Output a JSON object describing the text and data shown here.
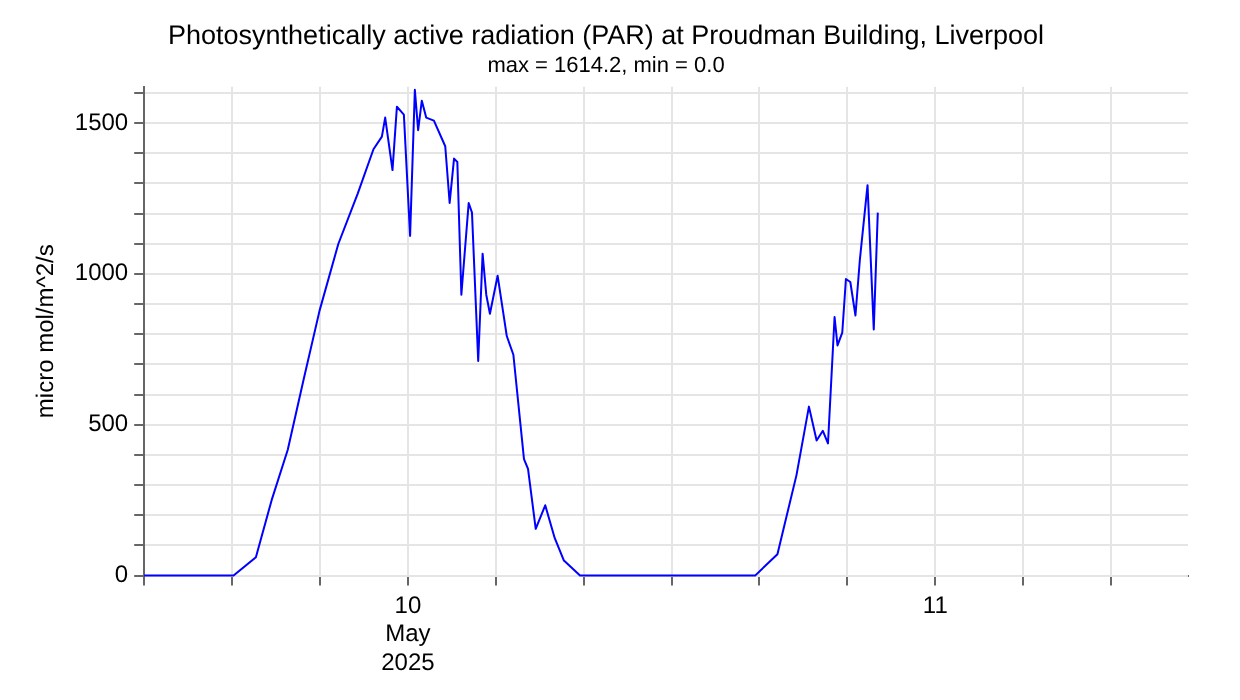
{
  "chart_data": {
    "type": "line",
    "title": "Photosynthetically active radiation (PAR) at Proudman Building, Liverpool",
    "subtitle": "max = 1614.2, min = 0.0",
    "ylabel": "micro mol/m^2/s",
    "xlim": [
      "2025-05-10T00:00",
      "2025-05-11T23:30"
    ],
    "xticks": [
      {
        "value": "2025-05-10T00:00",
        "label": null
      },
      {
        "value": "2025-05-10T04:00",
        "label": null
      },
      {
        "value": "2025-05-10T08:00",
        "label": null
      },
      {
        "value": "2025-05-10T12:00",
        "label": "10\nMay\n2025"
      },
      {
        "value": "2025-05-10T16:00",
        "label": null
      },
      {
        "value": "2025-05-10T20:00",
        "label": null
      },
      {
        "value": "2025-05-11T00:00",
        "label": null
      },
      {
        "value": "2025-05-11T04:00",
        "label": null
      },
      {
        "value": "2025-05-11T08:00",
        "label": null
      },
      {
        "value": "2025-05-11T12:00",
        "label": "11"
      },
      {
        "value": "2025-05-11T16:00",
        "label": null
      },
      {
        "value": "2025-05-11T20:00",
        "label": null
      }
    ],
    "ylim": [
      0,
      1620
    ],
    "yticks": [
      0,
      {
        "value": 100,
        "label": null
      },
      {
        "value": 200,
        "label": null
      },
      {
        "value": 300,
        "label": null
      },
      {
        "value": 400,
        "label": null
      },
      500,
      {
        "value": 600,
        "label": null
      },
      {
        "value": 700,
        "label": null
      },
      {
        "value": 800,
        "label": null
      },
      {
        "value": 900,
        "label": null
      },
      1000,
      {
        "value": 1100,
        "label": null
      },
      {
        "value": 1200,
        "label": null
      },
      {
        "value": 1300,
        "label": null
      },
      {
        "value": 1400,
        "label": null
      },
      1500,
      {
        "value": 1600,
        "label": null
      }
    ],
    "grid": true,
    "legend": false,
    "marker": "none",
    "line_style": "solid",
    "series": [
      {
        "color": "#0000ff",
        "x": [
          "2025-05-10T00:00",
          "2025-05-10T04:04",
          "2025-05-10T05:05",
          "2025-05-10T05:48",
          "2025-05-10T06:32",
          "2025-05-10T07:15",
          "2025-05-10T07:59",
          "2025-05-10T08:50",
          "2025-05-10T09:43",
          "2025-05-10T10:26",
          "2025-05-10T10:49",
          "2025-05-10T10:58",
          "2025-05-10T11:18",
          "2025-05-10T11:30",
          "2025-05-10T11:49",
          "2025-05-10T12:06",
          "2025-05-10T12:19",
          "2025-05-10T12:28",
          "2025-05-10T12:38",
          "2025-05-10T12:50",
          "2025-05-10T13:11",
          "2025-05-10T13:42",
          "2025-05-10T13:54",
          "2025-05-10T14:06",
          "2025-05-10T14:15",
          "2025-05-10T14:26",
          "2025-05-10T14:46",
          "2025-05-10T14:55",
          "2025-05-10T15:12",
          "2025-05-10T15:24",
          "2025-05-10T15:34",
          "2025-05-10T15:44",
          "2025-05-10T16:05",
          "2025-05-10T16:30",
          "2025-05-10T16:48",
          "2025-05-10T17:17",
          "2025-05-10T17:28",
          "2025-05-10T17:49",
          "2025-05-10T18:15",
          "2025-05-10T18:41",
          "2025-05-10T19:06",
          "2025-05-10T19:50",
          "2025-05-11T00:00",
          "2025-05-11T03:48",
          "2025-05-11T04:49",
          "2025-05-11T05:41",
          "2025-05-11T06:15",
          "2025-05-11T06:36",
          "2025-05-11T06:53",
          "2025-05-11T07:07",
          "2025-05-11T07:25",
          "2025-05-11T07:33",
          "2025-05-11T07:46",
          "2025-05-11T07:56",
          "2025-05-11T08:08",
          "2025-05-11T08:22",
          "2025-05-11T08:34",
          "2025-05-11T08:55",
          "2025-05-11T09:12",
          "2025-05-11T09:23"
        ],
        "values": [
          0,
          0,
          61,
          250,
          417,
          648,
          879,
          1099,
          1266,
          1413,
          1455,
          1518,
          1344,
          1554,
          1528,
          1126,
          1610,
          1476,
          1574,
          1518,
          1508,
          1423,
          1235,
          1382,
          1371,
          931,
          1235,
          1203,
          711,
          1067,
          931,
          868,
          994,
          794,
          732,
          386,
          354,
          155,
          233,
          124,
          50,
          0,
          0,
          0,
          71,
          333,
          560,
          448,
          480,
          438,
          857,
          763,
          805,
          983,
          973,
          862,
          1046,
          1294,
          816,
          1203
        ]
      }
    ]
  }
}
